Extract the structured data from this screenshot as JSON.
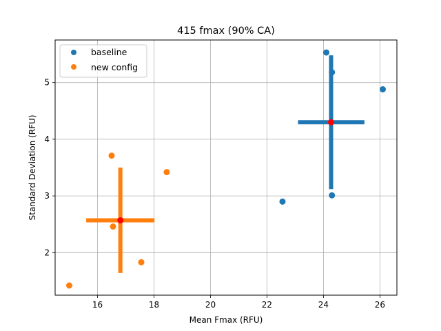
{
  "chart_data": {
    "type": "scatter",
    "title": "415 fmax (90% CA)",
    "xlabel": "Mean Fmax (RFU)",
    "ylabel": "Standard Deviation (RFU)",
    "xlim": [
      14.5,
      26.6
    ],
    "ylim": [
      1.25,
      5.75
    ],
    "xticks": [
      16,
      18,
      20,
      22,
      24,
      26
    ],
    "yticks": [
      2,
      3,
      4,
      5
    ],
    "grid": true,
    "legend_position": "top-left",
    "series": [
      {
        "name": "baseline",
        "color": "#1f77b4",
        "points": [
          {
            "x": 24.1,
            "y": 5.53
          },
          {
            "x": 24.3,
            "y": 5.18
          },
          {
            "x": 26.1,
            "y": 4.88
          },
          {
            "x": 22.55,
            "y": 2.9
          },
          {
            "x": 24.3,
            "y": 3.01
          }
        ],
        "center": {
          "x": 24.27,
          "y": 4.3
        },
        "x_error": [
          23.1,
          25.45
        ],
        "y_error": [
          3.12,
          5.48
        ]
      },
      {
        "name": "new config",
        "color": "#ff7f0e",
        "points": [
          {
            "x": 16.5,
            "y": 3.71
          },
          {
            "x": 18.45,
            "y": 3.42
          },
          {
            "x": 16.55,
            "y": 2.46
          },
          {
            "x": 17.55,
            "y": 1.83
          },
          {
            "x": 15.0,
            "y": 1.42
          }
        ],
        "center": {
          "x": 16.81,
          "y": 2.57
        },
        "x_error": [
          15.6,
          18.02
        ],
        "y_error": [
          1.64,
          3.5
        ]
      }
    ],
    "center_marker_color": "#ff0000"
  }
}
